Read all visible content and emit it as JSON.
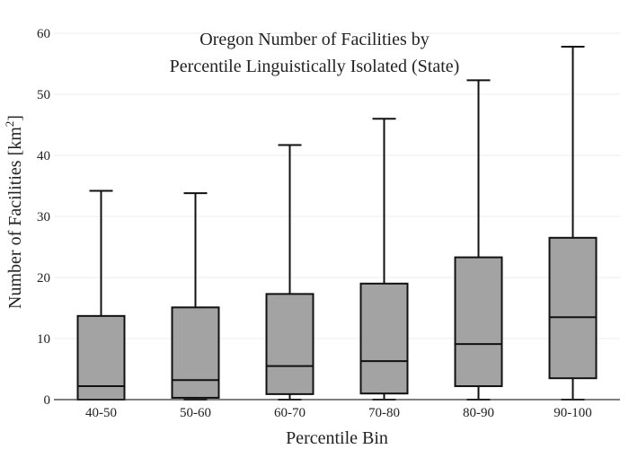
{
  "chart_data": {
    "type": "box",
    "title_lines": [
      "Oregon Number of Facilities by",
      "Percentile Linguistically Isolated (State)"
    ],
    "xlabel": "Percentile Bin",
    "ylabel_main": "Number of Facilities  [km",
    "ylabel_sup": "2",
    "ylabel_close": "]",
    "ylim": [
      0,
      60
    ],
    "yticks": [
      0,
      10,
      20,
      30,
      40,
      50,
      60
    ],
    "grid": true,
    "box_color": "#a3a3a3",
    "categories": [
      "40-50",
      "50-60",
      "60-70",
      "70-80",
      "80-90",
      "90-100"
    ],
    "boxes": [
      {
        "min": 0,
        "q1": 0,
        "median": 2.2,
        "q3": 13.7,
        "max": 34.2
      },
      {
        "min": 0,
        "q1": 0.3,
        "median": 3.2,
        "q3": 15.1,
        "max": 33.8
      },
      {
        "min": 0,
        "q1": 0.9,
        "median": 5.5,
        "q3": 17.3,
        "max": 41.7
      },
      {
        "min": 0,
        "q1": 1.0,
        "median": 6.3,
        "q3": 19.0,
        "max": 46.0
      },
      {
        "min": 0,
        "q1": 2.2,
        "median": 9.1,
        "q3": 23.3,
        "max": 52.3
      },
      {
        "min": 0,
        "q1": 3.5,
        "median": 13.5,
        "q3": 26.5,
        "max": 57.8
      }
    ]
  }
}
